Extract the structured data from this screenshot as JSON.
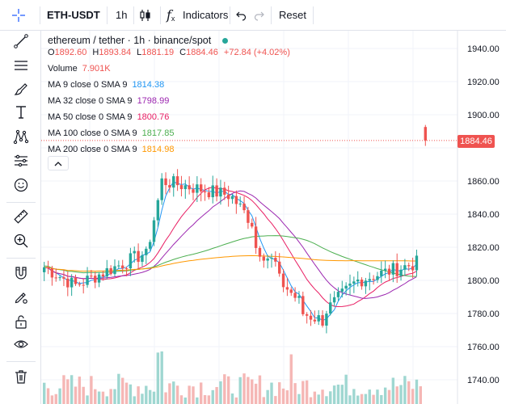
{
  "toolbar": {
    "symbol": "ETH-USDT",
    "interval": "1h",
    "indicators_label": "Indicators",
    "reset_label": "Reset",
    "fx_glyph": "f"
  },
  "legend": {
    "title": "ethereum / tether · 1h · binance/spot",
    "ohlc": {
      "open_label": "O",
      "open": "1892.60",
      "high_label": "H",
      "high": "1893.84",
      "low_label": "L",
      "low": "1881.19",
      "close_label": "C",
      "close": "1884.46",
      "change": "+72.84 (+4.02%)"
    },
    "volume_label": "Volume",
    "volume_value": "7.901K",
    "ma": [
      {
        "label": "MA 9 close 0 SMA 9",
        "value": "1814.38",
        "color": "#2196f3"
      },
      {
        "label": "MA 32 close 0 SMA 9",
        "value": "1798.99",
        "color": "#9c27b0"
      },
      {
        "label": "MA 50 close 0 SMA 9",
        "value": "1800.76",
        "color": "#e91e63"
      },
      {
        "label": "MA 100 close 0 SMA 9",
        "value": "1817.85",
        "color": "#4caf50"
      },
      {
        "label": "MA 200 close 0 SMA 9",
        "value": "1814.98",
        "color": "#ff9800"
      }
    ]
  },
  "price_axis": {
    "ticks": [
      "1940.00",
      "1920.00",
      "1900.00",
      "1860.00",
      "1840.00",
      "1820.00",
      "1800.00",
      "1780.00",
      "1760.00",
      "1740.00"
    ],
    "last_price": "1884.46"
  },
  "colors": {
    "up": "#26a69a",
    "down": "#ef5350",
    "up_volume": "#9fd7d1",
    "down_volume": "#f5b7b5",
    "grid": "#f0f3fa",
    "accent": "#2962ff"
  },
  "chart_data": {
    "type": "candlestick",
    "interval": "1h",
    "y_ticks": [
      1740,
      1760,
      1780,
      1800,
      1820,
      1840,
      1860,
      1880,
      1900,
      1920,
      1940
    ],
    "last_close": 1884.46
  }
}
